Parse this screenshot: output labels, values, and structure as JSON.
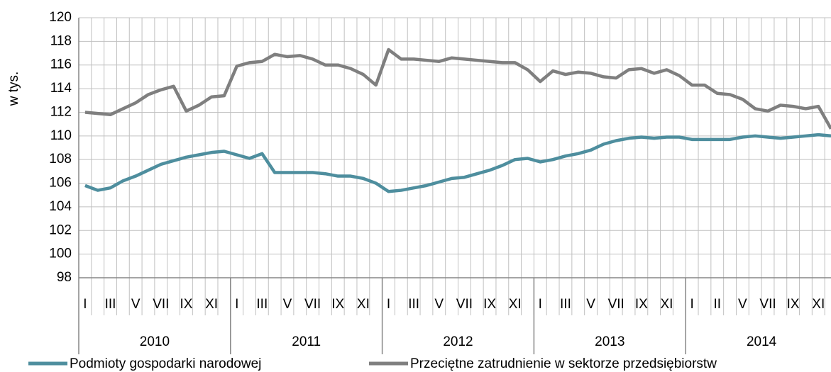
{
  "chart_data": {
    "type": "line",
    "ylabel": "w tys.",
    "categories": [
      "I",
      null,
      "III",
      null,
      "V",
      null,
      "VII",
      null,
      "IX",
      null,
      "XI",
      null,
      "I",
      null,
      "III",
      null,
      "V",
      null,
      "VII",
      null,
      "IX",
      null,
      "XI",
      null,
      "I",
      null,
      "III",
      null,
      "V",
      null,
      "VII",
      null,
      "IX",
      null,
      "XI",
      null,
      "I",
      null,
      "III",
      null,
      "V",
      null,
      "VII",
      null,
      "IX",
      null,
      "XI",
      null,
      "I",
      null,
      "II",
      null,
      "V",
      null,
      "VII",
      null,
      "IX",
      null,
      "XI",
      null
    ],
    "years": [
      "2010",
      "2011",
      "2012",
      "2013",
      "2014"
    ],
    "series": [
      {
        "name": "Podmioty gospodarki narodowej",
        "color": "#4e8e9e",
        "values": [
          105.8,
          105.4,
          105.6,
          106.2,
          106.6,
          107.1,
          107.6,
          107.9,
          108.2,
          108.4,
          108.6,
          108.7,
          108.4,
          108.1,
          108.5,
          106.9,
          106.9,
          106.9,
          106.9,
          106.8,
          106.6,
          106.6,
          106.4,
          106.0,
          105.3,
          105.4,
          105.6,
          105.8,
          106.1,
          106.4,
          106.5,
          106.8,
          107.1,
          107.5,
          108.0,
          108.1,
          107.8,
          108.0,
          108.3,
          108.5,
          108.8,
          109.3,
          109.6,
          109.8,
          109.9,
          109.8,
          109.9,
          109.9,
          109.7,
          109.7,
          109.7,
          109.7,
          109.9,
          110.0,
          109.9,
          109.8,
          109.9,
          110.0,
          110.1,
          110.0
        ]
      },
      {
        "name": "Przeciętne zatrudnienie w sektorze przedsiębiorstw",
        "color": "#7f7f7f",
        "values": [
          112.0,
          111.9,
          111.8,
          112.3,
          112.8,
          113.5,
          113.9,
          114.2,
          112.1,
          112.6,
          113.3,
          113.4,
          115.9,
          116.2,
          116.3,
          116.9,
          116.7,
          116.8,
          116.5,
          116.0,
          116.0,
          115.7,
          115.2,
          114.3,
          117.3,
          116.5,
          116.5,
          116.4,
          116.3,
          116.6,
          116.5,
          116.4,
          116.3,
          116.2,
          116.2,
          115.6,
          114.6,
          115.5,
          115.2,
          115.4,
          115.3,
          115.0,
          114.9,
          115.6,
          115.7,
          115.3,
          115.6,
          115.1,
          114.3,
          114.3,
          113.6,
          113.5,
          113.1,
          112.3,
          112.1,
          112.6,
          112.5,
          112.3,
          112.5,
          110.6
        ]
      }
    ],
    "ylim": [
      98,
      120
    ],
    "yticks": [
      98,
      100,
      102,
      104,
      106,
      108,
      110,
      112,
      114,
      116,
      118,
      120
    ],
    "grid": true,
    "legend": "bottom"
  }
}
